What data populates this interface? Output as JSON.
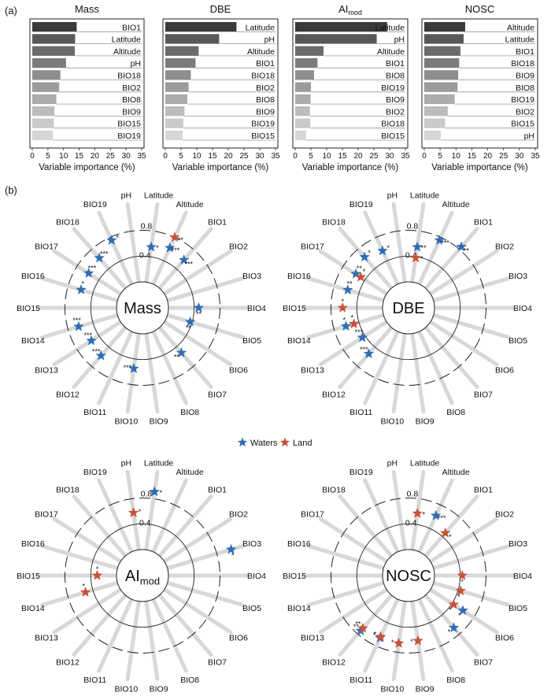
{
  "figure": {
    "panel_a_label": "(a)",
    "panel_b_label": "(b)",
    "legend": {
      "items": [
        {
          "label": "Waters",
          "color": "#2f6eb5"
        },
        {
          "label": "Land",
          "color": "#c8513a"
        }
      ]
    }
  },
  "chart_data": [
    {
      "type": "bar",
      "orientation": "horizontal",
      "title": "Mass",
      "xlabel": "Variable importance (%)",
      "xlim": [
        0,
        35
      ],
      "xticks": [
        "0",
        "5",
        "10",
        "15",
        "20",
        "25",
        "30",
        "35"
      ],
      "categories": [
        "BIO1",
        "Latitude",
        "Altitude",
        "pH",
        "BIO18",
        "BIO2",
        "BIO8",
        "BIO9",
        "BIO15",
        "BIO19"
      ],
      "values": [
        14.2,
        13.7,
        13.6,
        10.8,
        9.0,
        8.6,
        7.7,
        7.1,
        6.9,
        6.6
      ],
      "colors": [
        "#3a3a3a",
        "#585858",
        "#6b6b6b",
        "#7c7c7c",
        "#8e8e8e",
        "#9c9c9c",
        "#acacac",
        "#bcbcbc",
        "#cacaca",
        "#d6d6d6"
      ]
    },
    {
      "type": "bar",
      "orientation": "horizontal",
      "title": "DBE",
      "xlabel": "Variable importance (%)",
      "xlim": [
        0,
        35
      ],
      "xticks": [
        "0",
        "5",
        "10",
        "15",
        "20",
        "25",
        "30",
        "35"
      ],
      "categories": [
        "Latitude",
        "pH",
        "Altitude",
        "BIO1",
        "BIO18",
        "BIO2",
        "BIO8",
        "BIO9",
        "BIO19",
        "BIO15"
      ],
      "values": [
        22.6,
        17.1,
        10.6,
        9.6,
        8.1,
        7.4,
        7.0,
        6.1,
        5.7,
        5.5
      ],
      "colors": [
        "#3a3a3a",
        "#585858",
        "#6b6b6b",
        "#7c7c7c",
        "#8e8e8e",
        "#9c9c9c",
        "#acacac",
        "#bcbcbc",
        "#cacaca",
        "#d6d6d6"
      ]
    },
    {
      "type": "bar",
      "orientation": "horizontal",
      "title": "AI",
      "title_subscript": "mod",
      "xlabel": "Variable importance (%)",
      "xlim": [
        0,
        35
      ],
      "xticks": [
        "0",
        "5",
        "10",
        "15",
        "20",
        "25",
        "30",
        "35"
      ],
      "categories": [
        "Latitude",
        "pH",
        "Altitude",
        "BIO1",
        "BIO8",
        "BIO19",
        "BIO9",
        "BIO2",
        "BIO18",
        "BIO15"
      ],
      "values": [
        29.2,
        25.9,
        9.0,
        7.1,
        6.0,
        5.0,
        4.9,
        4.7,
        4.8,
        3.5
      ],
      "colors": [
        "#3a3a3a",
        "#585858",
        "#6b6b6b",
        "#7c7c7c",
        "#8e8e8e",
        "#9c9c9c",
        "#acacac",
        "#bcbcbc",
        "#cacaca",
        "#d6d6d6"
      ]
    },
    {
      "type": "bar",
      "orientation": "horizontal",
      "title": "NOSC",
      "xlabel": "Variable importance (%)",
      "xlim": [
        0,
        35
      ],
      "xticks": [
        "0",
        "5",
        "10",
        "15",
        "20",
        "25",
        "30",
        "35"
      ],
      "categories": [
        "Altitude",
        "Latitude",
        "BIO1",
        "BIO18",
        "BIO9",
        "BIO8",
        "BIO19",
        "BIO2",
        "BIO15",
        "pH"
      ],
      "values": [
        12.9,
        12.4,
        11.4,
        11.0,
        10.7,
        10.5,
        9.6,
        7.4,
        6.6,
        5.2
      ],
      "colors": [
        "#3a3a3a",
        "#585858",
        "#6b6b6b",
        "#7c7c7c",
        "#8e8e8e",
        "#9c9c9c",
        "#acacac",
        "#bcbcbc",
        "#cacaca",
        "#d6d6d6"
      ]
    },
    {
      "type": "scatter",
      "subtype": "radial",
      "title": "Mass",
      "axes": [
        "pH",
        "Latitude",
        "Altitude",
        "BIO1",
        "BIO2",
        "BIO3",
        "BIO4",
        "BIO5",
        "BIO6",
        "BIO7",
        "BIO8",
        "BIO9",
        "BIO10",
        "BIO11",
        "BIO12",
        "BIO13",
        "BIO14",
        "BIO15",
        "BIO16",
        "BIO17",
        "BIO18",
        "BIO19"
      ],
      "rlim": [
        0,
        1.1
      ],
      "ring_labels": [
        "0.4",
        "0.8"
      ],
      "series": [
        {
          "name": "Waters",
          "points": [
            {
              "axis": "Latitude",
              "r": 0.55,
              "sig": "*"
            },
            {
              "axis": "Altitude",
              "r": 0.62,
              "sig": "***"
            },
            {
              "axis": "BIO1",
              "r": 0.58,
              "sig": "***"
            },
            {
              "axis": "BIO4",
              "r": 0.47,
              "sig": "**"
            },
            {
              "axis": "BIO5",
              "r": 0.37,
              "sig": "**"
            },
            {
              "axis": "BIO7",
              "r": 0.52,
              "sig": "**"
            },
            {
              "axis": "BIO10",
              "r": 0.55,
              "sig": "***"
            },
            {
              "axis": "BIO12",
              "r": 0.58,
              "sig": "***"
            },
            {
              "axis": "BIO13",
              "r": 0.54,
              "sig": "***"
            },
            {
              "axis": "BIO14",
              "r": 0.63,
              "sig": "***"
            },
            {
              "axis": "BIO16",
              "r": 0.59,
              "sig": "*"
            },
            {
              "axis": "BIO17",
              "r": 0.59,
              "sig": "***"
            },
            {
              "axis": "BIO18",
              "r": 0.62,
              "sig": "***"
            },
            {
              "axis": "BIO19",
              "r": 0.75,
              "sig": "*"
            }
          ]
        },
        {
          "name": "Land",
          "points": [
            {
              "axis": "Altitude",
              "r": 0.8,
              "sig": "**"
            }
          ]
        }
      ]
    },
    {
      "type": "scatter",
      "subtype": "radial",
      "title": "DBE",
      "axes": [
        "pH",
        "Latitude",
        "Altitude",
        "BIO1",
        "BIO2",
        "BIO3",
        "BIO4",
        "BIO5",
        "BIO6",
        "BIO7",
        "BIO8",
        "BIO9",
        "BIO10",
        "BIO11",
        "BIO12",
        "BIO13",
        "BIO14",
        "BIO15",
        "BIO16",
        "BIO17",
        "BIO18",
        "BIO19"
      ],
      "rlim": [
        0,
        1.1
      ],
      "ring_labels": [
        "0.4",
        "0.8"
      ],
      "series": [
        {
          "name": "Waters",
          "points": [
            {
              "axis": "Latitude",
              "r": 0.55,
              "sig": "**"
            },
            {
              "axis": "Altitude",
              "r": 0.75,
              "sig": "***"
            },
            {
              "axis": "BIO1",
              "r": 0.85,
              "sig": "**"
            },
            {
              "axis": "BIO12",
              "r": 0.54,
              "sig": "***"
            },
            {
              "axis": "BIO13",
              "r": 0.45,
              "sig": "***"
            },
            {
              "axis": "BIO14",
              "r": 0.61,
              "sig": "*"
            },
            {
              "axis": "BIO16",
              "r": 0.58,
              "sig": "**"
            },
            {
              "axis": "BIO17",
              "r": 0.57,
              "sig": "**"
            },
            {
              "axis": "BIO18",
              "r": 0.64,
              "sig": "*"
            },
            {
              "axis": "BIO19",
              "r": 0.57,
              "sig": "*"
            }
          ]
        },
        {
          "name": "Land",
          "points": [
            {
              "axis": "Latitude",
              "r": 0.38,
              "sig": "*"
            },
            {
              "axis": "BIO14",
              "r": 0.48,
              "sig": "*"
            },
            {
              "axis": "BIO15",
              "r": 0.62,
              "sig": "*"
            },
            {
              "axis": "BIO17",
              "r": 0.48,
              "sig": "*"
            }
          ]
        }
      ]
    },
    {
      "type": "scatter",
      "subtype": "radial",
      "title": "AI",
      "title_subscript": "mod",
      "axes": [
        "pH",
        "Latitude",
        "Altitude",
        "BIO1",
        "BIO2",
        "BIO3",
        "BIO4",
        "BIO5",
        "BIO6",
        "BIO7",
        "BIO8",
        "BIO9",
        "BIO10",
        "BIO11",
        "BIO12",
        "BIO13",
        "BIO14",
        "BIO15",
        "BIO16",
        "BIO17",
        "BIO18",
        "BIO19"
      ],
      "rlim": [
        0,
        1.1
      ],
      "ring_labels": [
        "0.4",
        "0.8"
      ],
      "series": [
        {
          "name": "Waters",
          "points": [
            {
              "axis": "Latitude",
              "r": 0.91,
              "sig": "*"
            },
            {
              "axis": "BIO3",
              "r": 1.03,
              "sig": "*"
            }
          ]
        },
        {
          "name": "Land",
          "points": [
            {
              "axis": "pH",
              "r": 0.58,
              "sig": "*"
            },
            {
              "axis": "BIO14",
              "r": 0.52,
              "sig": "*"
            },
            {
              "axis": "BIO15",
              "r": 0.3,
              "sig": "*"
            }
          ]
        }
      ]
    },
    {
      "type": "scatter",
      "subtype": "radial",
      "title": "NOSC",
      "axes": [
        "pH",
        "Latitude",
        "Altitude",
        "BIO1",
        "BIO2",
        "BIO3",
        "BIO4",
        "BIO5",
        "BIO6",
        "BIO7",
        "BIO8",
        "BIO9",
        "BIO10",
        "BIO11",
        "BIO12",
        "BIO13",
        "BIO14",
        "BIO15",
        "BIO16",
        "BIO17",
        "BIO18",
        "BIO19"
      ],
      "rlim": [
        0,
        1.1
      ],
      "ring_labels": [
        "0.4",
        "0.8"
      ],
      "series": [
        {
          "name": "Waters",
          "points": [
            {
              "axis": "Altitude",
              "r": 0.62,
              "sig": "***"
            },
            {
              "axis": "BIO6",
              "r": 0.6,
              "sig": "*"
            },
            {
              "axis": "BIO7",
              "r": 0.67,
              "sig": "*"
            },
            {
              "axis": "BIO11",
              "r": 0.66,
              "sig": "*"
            },
            {
              "axis": "BIO12",
              "r": 0.73,
              "sig": "**"
            }
          ]
        },
        {
          "name": "Land",
          "points": [
            {
              "axis": "Latitude",
              "r": 0.57,
              "sig": "*"
            },
            {
              "axis": "BIO1",
              "r": 0.47,
              "sig": "*"
            },
            {
              "axis": "BIO4",
              "r": 0.43,
              "sig": "*"
            },
            {
              "axis": "BIO5",
              "r": 0.44,
              "sig": "*"
            },
            {
              "axis": "BIO6",
              "r": 0.43,
              "sig": "*"
            },
            {
              "axis": "BIO9",
              "r": 0.62,
              "sig": "*"
            },
            {
              "axis": "BIO10",
              "r": 0.66,
              "sig": "*"
            },
            {
              "axis": "BIO11",
              "r": 0.64,
              "sig": "*"
            },
            {
              "axis": "BIO12",
              "r": 0.68,
              "sig": "**"
            }
          ]
        }
      ]
    }
  ]
}
